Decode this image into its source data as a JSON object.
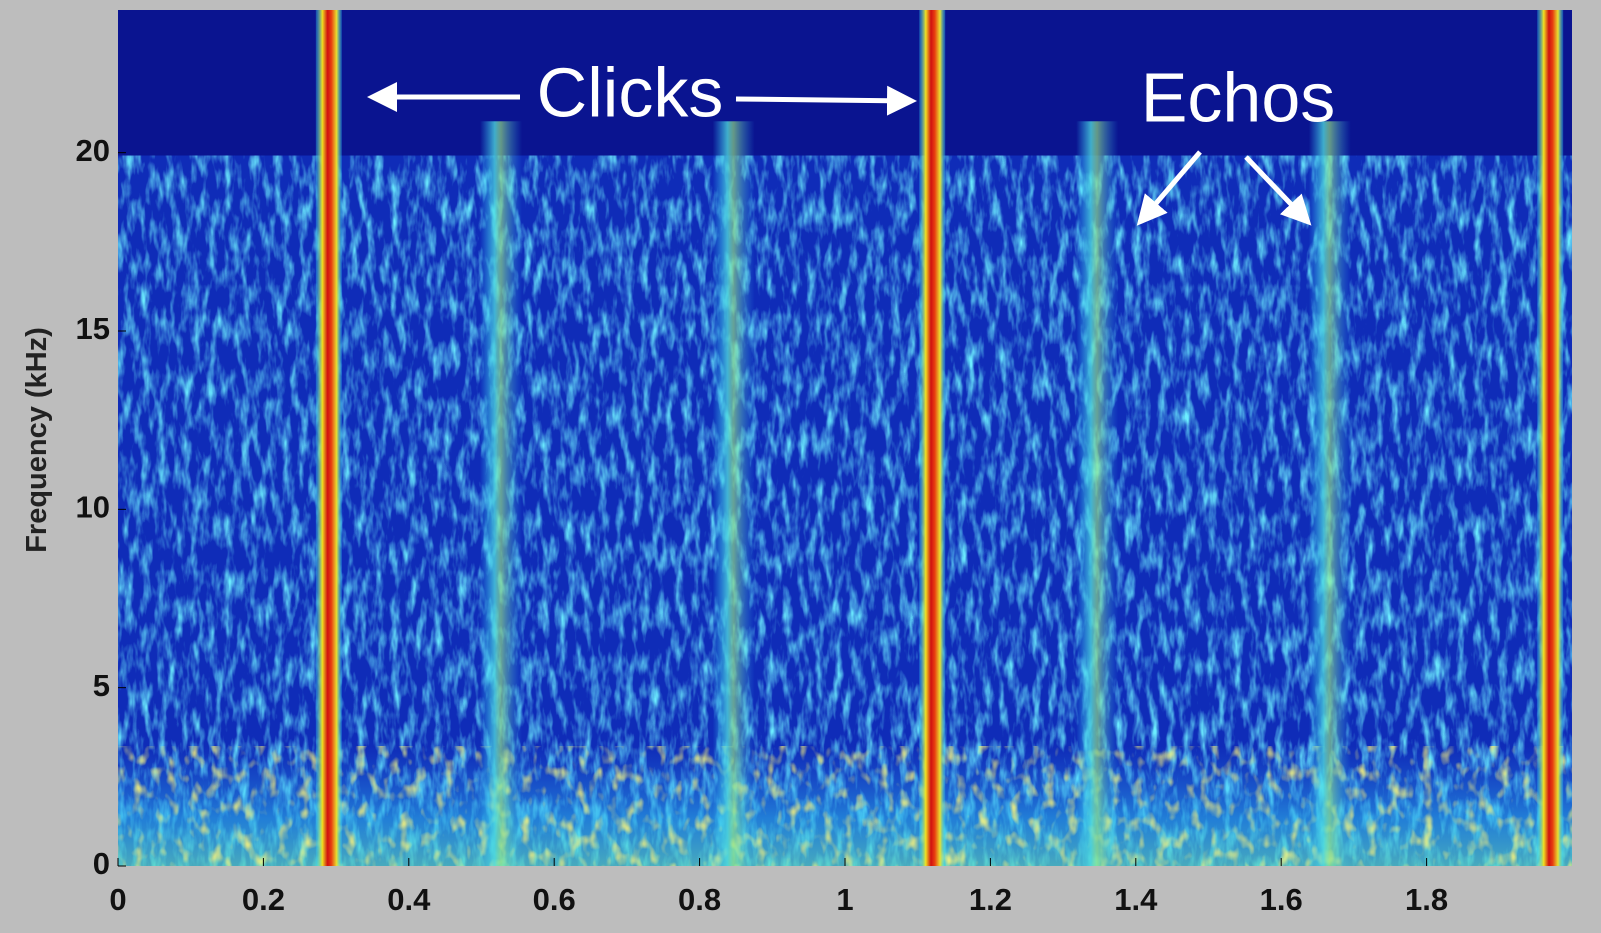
{
  "chart_data": {
    "type": "spectrogram",
    "ylabel": "Frequency (kHz)",
    "xlim": [
      0,
      2
    ],
    "ylim": [
      0,
      24
    ],
    "xticks": [
      0,
      0.2,
      0.4,
      0.6,
      0.8,
      1,
      1.2,
      1.4,
      1.6,
      1.8
    ],
    "yticks": [
      0,
      5,
      10,
      15,
      20
    ],
    "clicks": [
      0.29,
      1.12,
      1.97
    ],
    "echoes": [
      0.52,
      0.84,
      1.34,
      1.66
    ],
    "annotations": [
      "Clicks",
      "Echos"
    ]
  }
}
